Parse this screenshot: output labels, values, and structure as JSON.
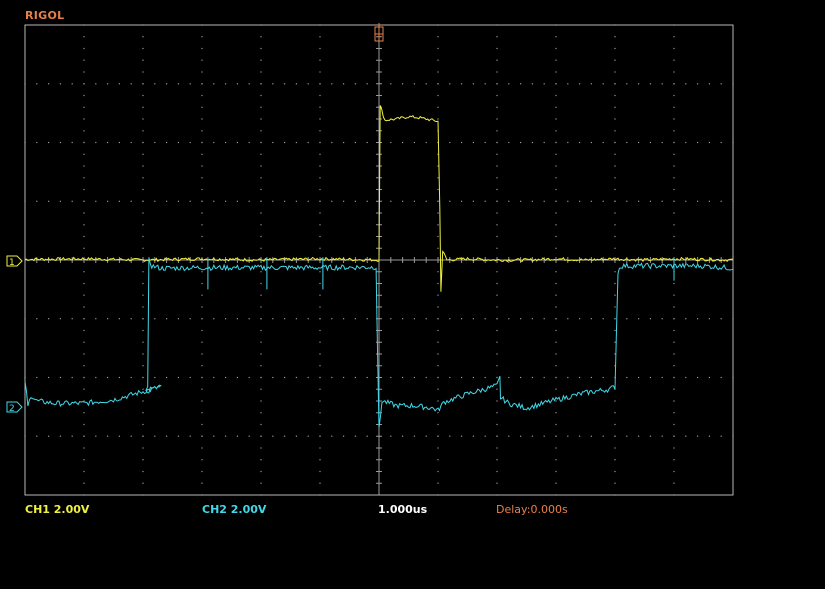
{
  "brand": "RIGOL",
  "status": {
    "ch1": "CH1  2.00V",
    "ch2": "CH2  2.00V",
    "timebase": "1.000us",
    "delay": "Delay:0.000s"
  },
  "markers": {
    "ch1": "1",
    "ch2": "2"
  },
  "colors": {
    "brand": "#e8804a",
    "ch1": "#f0f040",
    "ch2": "#40d8e8",
    "grid": "#9a9a9a",
    "frame": "#b8b8b8",
    "delay": "#e8804a",
    "timebase": "#ffffff"
  },
  "icons": {
    "trigger_position": "trigger-position-marker-icon"
  },
  "chart_data": {
    "type": "line",
    "grid": true,
    "divisions": {
      "x": 12,
      "y": 8
    },
    "volts_per_div": {
      "ch1": 2.0,
      "ch2": 2.0
    },
    "seconds_per_div": 1e-06,
    "xlim": [
      -6,
      6
    ],
    "ylim": [
      -4,
      4
    ],
    "series": [
      {
        "name": "CH1  2.00V",
        "channel": 1,
        "points": [
          [
            -6.0,
            0.01
          ],
          [
            -5.0,
            0.02
          ],
          [
            -4.0,
            0.0
          ],
          [
            -3.0,
            0.02
          ],
          [
            -2.0,
            0.0
          ],
          [
            -1.0,
            0.02
          ],
          [
            0.0,
            0.0
          ],
          [
            0.02,
            2.62
          ],
          [
            0.1,
            2.38
          ],
          [
            0.3,
            2.4
          ],
          [
            0.5,
            2.44
          ],
          [
            0.7,
            2.42
          ],
          [
            0.9,
            2.38
          ],
          [
            1.0,
            2.36
          ],
          [
            1.03,
            0.9
          ],
          [
            1.05,
            -0.52
          ],
          [
            1.08,
            0.15
          ],
          [
            1.15,
            0.0
          ],
          [
            1.5,
            0.02
          ],
          [
            2.0,
            0.0
          ],
          [
            2.5,
            0.0
          ],
          [
            3.0,
            0.02
          ],
          [
            3.5,
            0.0
          ],
          [
            4.0,
            0.02
          ],
          [
            4.5,
            0.0
          ],
          [
            5.0,
            0.02
          ],
          [
            6.0,
            0.0
          ]
        ]
      },
      {
        "name": "CH2  2.00V",
        "channel": 2,
        "points": [
          [
            -6.0,
            -2.05
          ],
          [
            -5.95,
            -2.5
          ],
          [
            -5.9,
            -2.3
          ],
          [
            -5.8,
            -2.4
          ],
          [
            -5.5,
            -2.44
          ],
          [
            -5.0,
            -2.44
          ],
          [
            -4.5,
            -2.38
          ],
          [
            -4.0,
            -2.24
          ],
          [
            -3.7,
            -2.16
          ],
          [
            -3.95,
            -2.23
          ],
          [
            -3.92,
            -2.2
          ],
          [
            -3.9,
            0.0
          ],
          [
            -3.85,
            -0.1
          ],
          [
            -3.7,
            -0.14
          ],
          [
            -3.0,
            -0.13
          ],
          [
            -2.0,
            -0.13
          ],
          [
            -1.0,
            -0.13
          ],
          [
            -0.05,
            -0.12
          ],
          [
            0.0,
            -2.9
          ],
          [
            0.05,
            -2.4
          ],
          [
            0.3,
            -2.48
          ],
          [
            0.6,
            -2.48
          ],
          [
            0.9,
            -2.52
          ],
          [
            1.0,
            -2.56
          ],
          [
            1.1,
            -2.42
          ],
          [
            1.5,
            -2.28
          ],
          [
            2.0,
            -2.14
          ],
          [
            2.05,
            -2.0
          ],
          [
            2.06,
            -2.34
          ],
          [
            2.2,
            -2.44
          ],
          [
            2.5,
            -2.52
          ],
          [
            3.0,
            -2.38
          ],
          [
            3.5,
            -2.26
          ],
          [
            3.9,
            -2.2
          ],
          [
            4.0,
            -2.16
          ],
          [
            4.05,
            -0.2
          ],
          [
            4.1,
            -0.1
          ],
          [
            4.5,
            -0.1
          ],
          [
            5.0,
            -0.1
          ],
          [
            5.5,
            -0.1
          ],
          [
            6.0,
            -0.14
          ]
        ]
      }
    ],
    "spikes": [
      {
        "channel": 2,
        "x": [
          -2.9,
          -1.9,
          -0.95
        ],
        "y_low": -0.5,
        "y_high": 0.05
      },
      {
        "channel": 2,
        "x": [
          5.0
        ],
        "y_low": -0.35,
        "y_high": 0.05
      }
    ]
  }
}
